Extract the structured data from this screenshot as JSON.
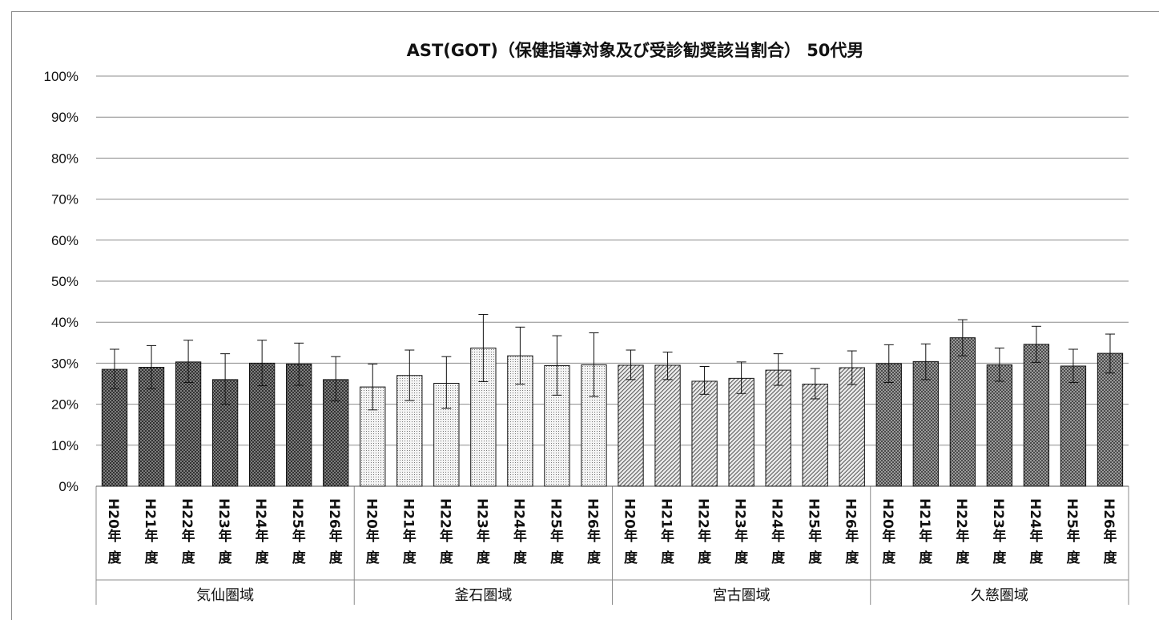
{
  "chart_data": {
    "type": "bar",
    "title": "AST(GOT)（保健指導対象及び受診勧奨該当割合） 50代男",
    "ylim": [
      0,
      100
    ],
    "yticks": [
      "0%",
      "10%",
      "20%",
      "30%",
      "40%",
      "50%",
      "60%",
      "70%",
      "80%",
      "90%",
      "100%"
    ],
    "ytick_values": [
      0,
      10,
      20,
      30,
      40,
      50,
      60,
      70,
      80,
      90,
      100
    ],
    "grid": true,
    "legend": "none",
    "categories": [
      "H20年度",
      "H21年度",
      "H22年度",
      "H23年度",
      "H24年度",
      "H25年度",
      "H26年度"
    ],
    "groups": [
      {
        "name": "気仙圏域",
        "pattern": "crosshatch-dark",
        "values": [
          28.5,
          29.0,
          30.3,
          26.0,
          30.0,
          29.8,
          26.0
        ],
        "err_low": [
          23.8,
          23.8,
          25.3,
          20.0,
          24.5,
          24.6,
          20.8
        ],
        "err_high": [
          33.4,
          34.3,
          35.6,
          32.3,
          35.6,
          34.9,
          31.6
        ]
      },
      {
        "name": "釜石圏域",
        "pattern": "dots",
        "values": [
          24.2,
          27.0,
          25.1,
          33.7,
          31.8,
          29.4,
          29.6
        ],
        "err_low": [
          18.6,
          20.9,
          19.0,
          25.5,
          24.9,
          22.2,
          21.9
        ],
        "err_high": [
          29.8,
          33.2,
          31.6,
          41.9,
          38.8,
          36.7,
          37.4
        ]
      },
      {
        "name": "宮古圏域",
        "pattern": "diagonal",
        "values": [
          29.5,
          29.5,
          25.6,
          26.3,
          28.3,
          24.9,
          28.9
        ],
        "err_low": [
          26.0,
          26.0,
          22.4,
          22.6,
          24.6,
          21.3,
          24.8
        ],
        "err_high": [
          33.2,
          32.7,
          29.2,
          30.3,
          32.3,
          28.7,
          33.0
        ]
      },
      {
        "name": "久慈圏域",
        "pattern": "checker-dark",
        "values": [
          29.9,
          30.4,
          36.2,
          29.6,
          34.6,
          29.3,
          32.4
        ],
        "err_low": [
          25.3,
          26.0,
          31.8,
          25.6,
          30.2,
          25.3,
          27.6
        ],
        "err_high": [
          34.5,
          34.7,
          40.6,
          33.7,
          39.0,
          33.4,
          37.1
        ]
      }
    ],
    "colors": {
      "grid": "#8c8c8c",
      "bar_stroke": "#111111",
      "axis": "#8c8c8c"
    }
  }
}
